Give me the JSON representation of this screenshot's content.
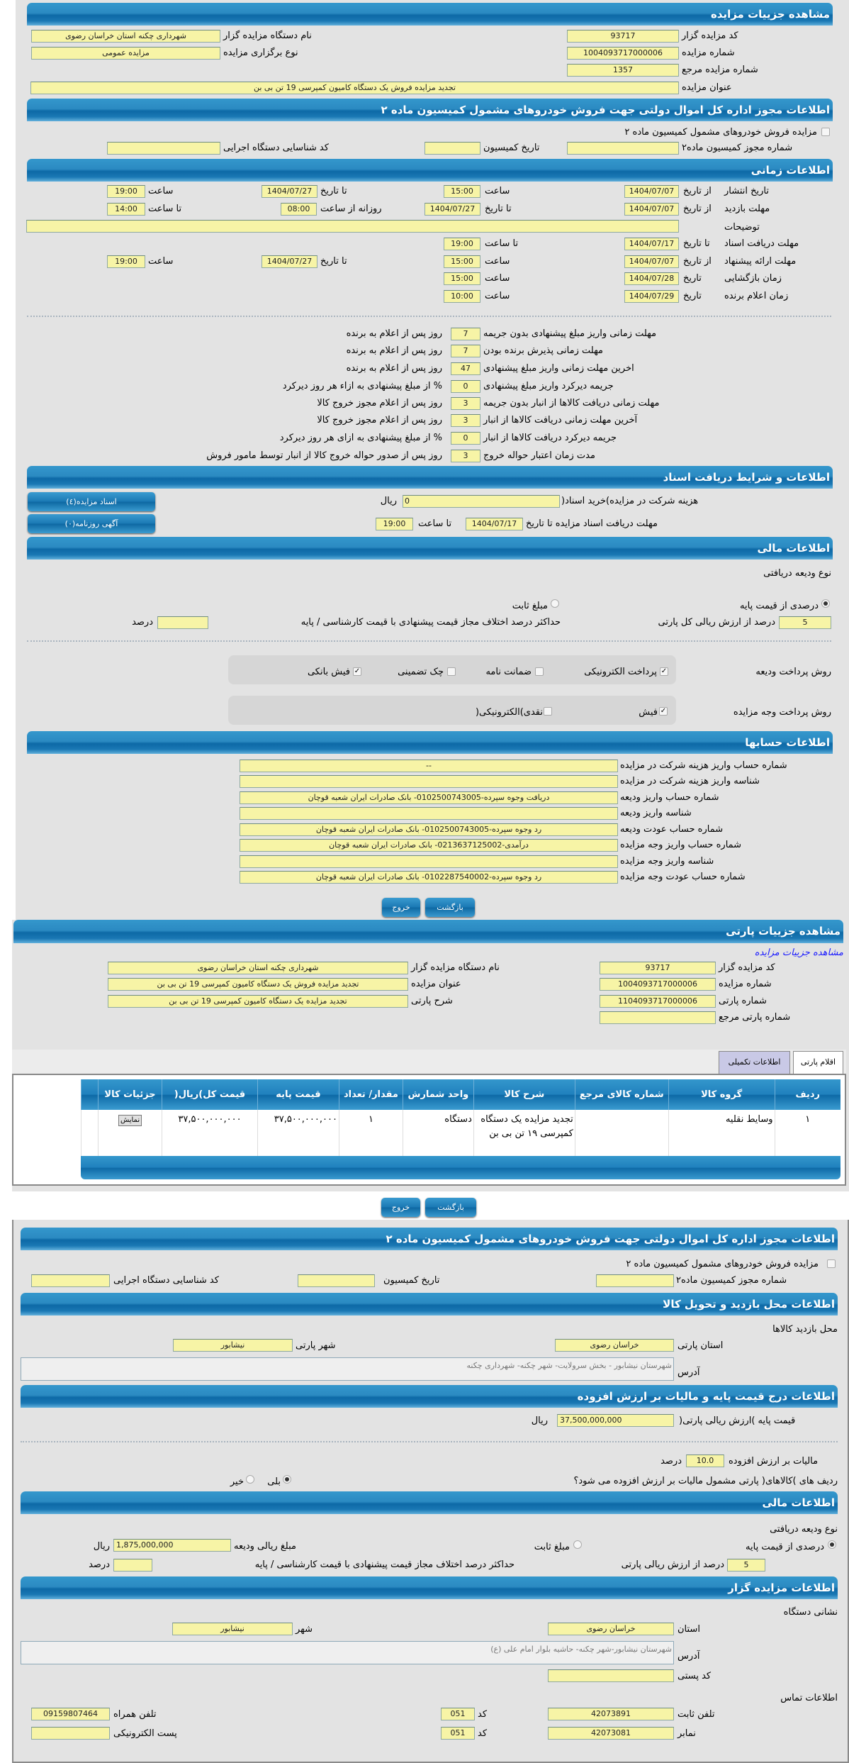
{
  "auction": {
    "title": "مشاهده جزییات مزایده",
    "code_label": "کد مزایده گزار",
    "code": "93717",
    "org_label": "نام دستگاه مزایده گزار",
    "org": "شهرداری چکنه استان خراسان رضوی",
    "number_label": "شماره مزایده",
    "number": "1004093717000006",
    "type_label": "نوع برگزاری مزایده",
    "type": "مزایده عمومی",
    "ref_label": "شماره مزایده مرجع",
    "ref": "1357",
    "subject_label": "عنوان مزایده",
    "subject": "تجدید مزایده فروش یک دستگاه کامیون کمپرسی 19 تن بی بن"
  },
  "permit": {
    "title": "اطلاعات مجوز اداره کل اموال دولتی جهت فروش خودروهای مشمول کمیسیون ماده ۲",
    "check_label": "مزایده فروش خودروهای مشمول کمیسیون ماده ۲",
    "checked": false,
    "permit_no_label": "شماره مجوز کمیسیون ماده۲",
    "permit_no": "",
    "date_label": "تاریخ کمیسیون",
    "date": "",
    "exec_code_label": "کد شناسایی دستگاه اجرایی",
    "exec_code": ""
  },
  "timing": {
    "title": "اطلاعات زمانی",
    "from_date": "از تاریخ",
    "to_date": "تا تاریخ",
    "date": "تاریخ",
    "hour": "ساعت",
    "to_hour": "تا ساعت",
    "daily_from": "روزانه از ساعت",
    "publish": {
      "label": "تاریخ انتشار",
      "from": "1404/07/07",
      "from_time": "15:00",
      "to": "1404/07/27",
      "to_time": "19:00"
    },
    "visit": {
      "label": "مهلت بازدید",
      "from": "1404/07/07",
      "to": "1404/07/27",
      "daily_from": "08:00",
      "daily_to": "14:00"
    },
    "desc_label": "توضیحات",
    "desc": "",
    "docs": {
      "label": "مهلت دریافت اسناد",
      "to": "1404/07/17",
      "to_time": "19:00"
    },
    "offer": {
      "label": "مهلت ارائه پیشنهاد",
      "from": "1404/07/07",
      "from_time": "15:00",
      "to": "1404/07/27",
      "to_time": "19:00"
    },
    "opening": {
      "label": "زمان بازگشایی",
      "date": "1404/07/28",
      "time": "15:00"
    },
    "winner": {
      "label": "زمان اعلام برنده",
      "date": "1404/07/29",
      "time": "10:00"
    }
  },
  "deadlines": [
    {
      "label": "مهلت زمانی واریز مبلغ پیشنهادی بدون جریمه",
      "value": "7",
      "suffix": "روز پس از اعلام به برنده"
    },
    {
      "label": "مهلت زمانی پذیرش برنده بودن",
      "value": "7",
      "suffix": "روز پس از اعلام به برنده"
    },
    {
      "label": "اخرین مهلت زمانی واریز مبلغ پیشنهادی",
      "value": "47",
      "suffix": "روز پس از اعلام به برنده"
    },
    {
      "label": "جریمه دیرکرد واریز مبلغ پیشنهادی",
      "value": "0",
      "suffix": "% از مبلغ پیشنهادی به ازاء هر روز دیرکرد"
    },
    {
      "label": "مهلت زمانی دریافت کالاها از انبار بدون جریمه",
      "value": "3",
      "suffix": "روز پس از اعلام مجوز خروج کالا"
    },
    {
      "label": "آخرین مهلت زمانی دریافت کالاها از انبار",
      "value": "3",
      "suffix": "روز پس از اعلام مجوز خروج کالا"
    },
    {
      "label": "جریمه دیرکرد دریافت کالاها از انبار",
      "value": "0",
      "suffix": "% از مبلغ پیشنهادی به ازای هر روز دیرکرد"
    },
    {
      "label": "مدت زمان اعتبار حواله خروج",
      "value": "3",
      "suffix": "روز پس از صدور حواله خروج کالا از انبار توسط مامور فروش"
    }
  ],
  "documents": {
    "title": "اطلاعات و شرایط دریافت اسناد",
    "fee_label": "هزینه شرکت در مزایده)خرید اسناد(",
    "fee": "0",
    "rial": "ریال",
    "deadline_label": "مهلت دریافت اسناد مزایده تا تاریخ",
    "deadline": "1404/07/17",
    "to_hour": "تا ساعت",
    "deadline_time": "19:00",
    "docs_button": "اسناد مزایده(٤)",
    "ads_button": "آگهی روزنامه(٠)"
  },
  "finance": {
    "title": "اطلاعات مالی",
    "deposit_type_label": "نوع ودیعه دریافتی",
    "percent_label": "درصدی از قیمت پایه",
    "percent_selected": true,
    "fixed_label": "مبلغ ثابت",
    "percent_value": "5",
    "percent_suffix": "درصد از ارزش ریالی کل پارتی",
    "max_diff_label": "حداکثر درصد اختلاف مجاز قیمت پیشنهادی با قیمت کارشناسی / پایه",
    "max_diff": "",
    "percent_word": "درصد",
    "deposit_methods_label": "روش پرداخت ودیعه",
    "deposit_methods": [
      {
        "label": "پرداخت الکترونیکی",
        "checked": true
      },
      {
        "label": "ضمانت نامه",
        "checked": false
      },
      {
        "label": "چک تضمینی",
        "checked": false
      },
      {
        "label": "فیش بانکی",
        "checked": true
      }
    ],
    "payment_methods_label": "روش پرداخت وجه مزایده",
    "payment_methods": [
      {
        "label": "فیش",
        "checked": true
      },
      {
        "label": "نقدی)الکترونیکی(",
        "checked": false
      }
    ]
  },
  "accounts": {
    "title": "اطلاعات حسابها",
    "rows": [
      {
        "label": "شماره حساب واریز هزینه شرکت در مزایده",
        "value": "--"
      },
      {
        "label": "شناسه واریز هزینه شرکت در مزایده",
        "value": ""
      },
      {
        "label": "شماره حساب واریز ودیعه",
        "value": "دریافت وجوه سپرده-0102500743005- بانک صادرات ایران شعبه قوچان"
      },
      {
        "label": "شناسه واریز ودیعه",
        "value": ""
      },
      {
        "label": "شماره حساب عودت ودیعه",
        "value": "رد وجوه سپرده-0102500743005- بانک صادرات ایران شعبه قوچان"
      },
      {
        "label": "شماره حساب واریز وجه مزایده",
        "value": "درآمدی-0213637125002- بانک صادرات ایران شعبه قوچان"
      },
      {
        "label": "شناسه واریز وجه مزایده",
        "value": ""
      },
      {
        "label": "شماره حساب عودت وجه مزایده",
        "value": "رد وجوه سپرده-0102287540002- بانک صادرات ایران شعبه قوچان"
      }
    ]
  },
  "buttons": {
    "back": "بازگشت",
    "exit": "خروج"
  },
  "party": {
    "title": "مشاهده جزییات پارتی",
    "link": "مشاهده جزییات مزایده",
    "code_label": "کد مزایده گزار",
    "code": "93717",
    "org_label": "نام دستگاه مزایده گزار",
    "org": "شهرداری چکنه استان خراسان رضوی",
    "number_label": "شماره مزایده",
    "number": "1004093717000006",
    "subject_label": "عنوان مزایده",
    "subject": "تجدید مزایده فروش یک دستگاه کامیون کمپرسی 19 تن بی بن",
    "party_no_label": "شماره پارتی",
    "party_no": "1104093717000006",
    "desc_label": "شرح پارتی",
    "desc": "تجدید مزایده یک دستگاه کامیون کمپرسی 19 تن بی بن",
    "ref_label": "شماره پارتی مرجع",
    "ref": "",
    "tabs": [
      {
        "label": "اقلام پارتی",
        "active": true
      },
      {
        "label": "اطلاعات تکمیلی",
        "active": false
      }
    ],
    "table": {
      "headers": [
        "ردیف",
        "گروه کالا",
        "شماره کالای مرجع",
        "شرح کالا",
        "واحد شمارش",
        "مقدار/ تعداد",
        "قیمت پایه",
        "قیمت کل)ریال(",
        "جزئیات کالا"
      ],
      "rows": [
        [
          "۱",
          "وسایط نقلیه",
          "",
          "تجدید مزایده یک دستگاه کمپرسی ۱۹ تن بی بن",
          "دستگاه",
          "۱",
          "۳۷,۵۰۰,۰۰۰,۰۰۰",
          "۳۷,۵۰۰,۰۰۰,۰۰۰",
          "نمایش"
        ]
      ]
    }
  },
  "permit2": {
    "title": "اطلاعات مجوز اداره کل اموال دولتی جهت فروش خودروهای مشمول کمیسیون ماده ۲",
    "check_label": "مزایده فروش خودروهای مشمول کمیسیون ماده ۲",
    "permit_no_label": "شماره مجوز کمیسیون ماده۲",
    "date_label": "تاریخ کمیسیون",
    "exec_code_label": "کد شناسایی دستگاه اجرایی"
  },
  "visit_place": {
    "title": "اطلاعات محل بازدید و تحویل کالا",
    "subtitle": "محل بازدید کالاها",
    "province_label": "استان پارتی",
    "province": "خراسان رضوی",
    "city_label": "شهر پارتی",
    "city": "نیشابور",
    "address_label": "آدرس",
    "address": "شهرستان نیشابور - بخش سرولایت- شهر چکنه- شهرداری چکنه"
  },
  "pricing": {
    "title": "اطلاعات درج قیمت پایه و مالیات بر ارزش افزوده",
    "base_label": "قیمت پایه )ارزش ریالی پارتی(",
    "base": "37,500,000,000",
    "rial": "ریال",
    "vat_label": "مالیات بر ارزش افزوده",
    "vat": "10.0",
    "percent": "درصد",
    "vat_q": "ردیف های )کالاهای( پارتی مشمول مالیات بر ارزش افزوده می شود؟",
    "yes": "بلی",
    "no": "خیر",
    "vat_applies": true
  },
  "finance2": {
    "title": "اطلاعات مالی",
    "deposit_type_label": "نوع ودیعه دریافتی",
    "percent_label": "درصدی از قیمت پایه",
    "fixed_label": "مبلغ ثابت",
    "amount_label": "مبلغ ریالی ودیعه",
    "amount": "1,875,000,000",
    "rial": "ریال",
    "percent_value": "5",
    "percent_suffix": "درصد از ارزش ریالی پارتی",
    "max_diff_label": "حداکثر درصد اختلاف مجاز قیمت پیشنهادی با قیمت کارشناسی / پایه",
    "max_diff": "",
    "percent_word": "درصد"
  },
  "auctioneer": {
    "title": "اطلاعات مزایده گزار",
    "address_title": "نشانی دستگاه",
    "province_label": "استان",
    "province": "خراسان رضوی",
    "city_label": "شهر",
    "city": "نیشابور",
    "address_label": "آدرس",
    "address": "شهرستان نیشابور-شهر چکنه- حاشیه بلوار امام علی (ع)",
    "postal_label": "کد پستی",
    "postal": "",
    "contact_title": "اطلاعات تماس",
    "phone_label": "تلفن ثابت",
    "phone": "42073891",
    "code_label": "کد",
    "phone_code": "051",
    "mobile_label": "تلفن همراه",
    "mobile": "09159807464",
    "fax_label": "نمابر",
    "fax": "42073081",
    "fax_code": "051",
    "email_label": "پست الکترونیکی",
    "email": ""
  },
  "colors": {
    "header": "#1a78b4",
    "input": "#f7f4a6",
    "panel": "#e3e3e3",
    "link": "#1a1aff"
  }
}
